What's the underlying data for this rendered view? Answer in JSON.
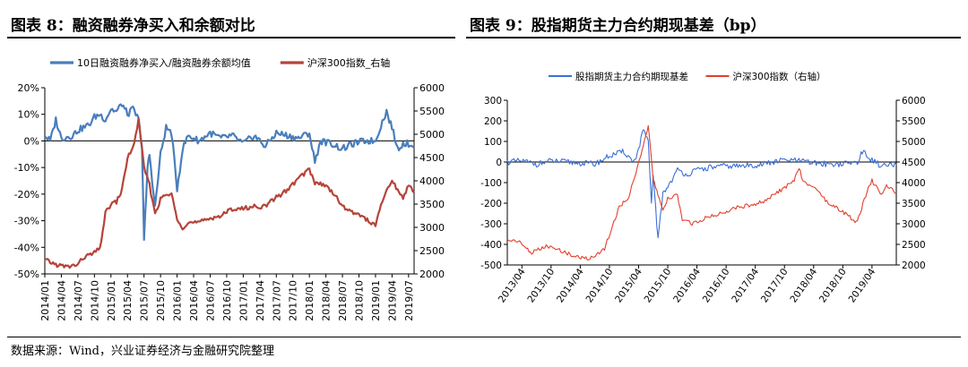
{
  "figures": {
    "left_title": "图表 8：融资融券净买入和余额对比",
    "right_title": "图表 9：股指期货主力合约期现基差（bp）"
  },
  "source_note": "数据来源：Wind，兴业证券经济与金融研究院整理",
  "chart_data": [
    {
      "type": "line",
      "title": "图表 8：融资融券净买入和余额对比",
      "x_ticks": [
        "2014/01",
        "2014/04",
        "2014/07",
        "2014/10",
        "2015/01",
        "2015/04",
        "2015/07",
        "2015/10",
        "2016/01",
        "2016/04",
        "2016/07",
        "2016/10",
        "2017/01",
        "2017/04",
        "2017/07",
        "2017/10",
        "2018/01",
        "2018/04",
        "2018/07",
        "2018/10",
        "2019/01",
        "2019/04",
        "2019/07"
      ],
      "x_range": [
        "2014/01",
        "2019/08"
      ],
      "y_left": {
        "ticks": [
          "20%",
          "10%",
          "0%",
          "-10%",
          "-20%",
          "-30%",
          "-40%",
          "-50%"
        ],
        "range": [
          -50,
          20
        ]
      },
      "y_right": {
        "ticks": [
          "6000",
          "5500",
          "5000",
          "4500",
          "4000",
          "3500",
          "3000",
          "2500",
          "2000"
        ],
        "range": [
          2000,
          6000
        ]
      },
      "legend": "top",
      "series": [
        {
          "name": "10日融资融券净买入/融资融券余额均值",
          "axis": "left",
          "color": "#4a7ebb",
          "points": [
            [
              "2014/01",
              2
            ],
            [
              "2014/02",
              0
            ],
            [
              "2014/03",
              8
            ],
            [
              "2014/04",
              1
            ],
            [
              "2014/06",
              2
            ],
            [
              "2014/07",
              4
            ],
            [
              "2014/09",
              6
            ],
            [
              "2014/10",
              9
            ],
            [
              "2014/11",
              10
            ],
            [
              "2014/12",
              8
            ],
            [
              "2015/01",
              12
            ],
            [
              "2015/02",
              11
            ],
            [
              "2015/03",
              14
            ],
            [
              "2015/04",
              10
            ],
            [
              "2015/05",
              12
            ],
            [
              "2015/06",
              8
            ],
            [
              "2015/06/20",
              -2
            ],
            [
              "2015/07",
              -38
            ],
            [
              "2015/07/20",
              -10
            ],
            [
              "2015/08",
              -5
            ],
            [
              "2015/09",
              -25
            ],
            [
              "2015/10",
              -5
            ],
            [
              "2015/11",
              5
            ],
            [
              "2015/12",
              3
            ],
            [
              "2016/01",
              -18
            ],
            [
              "2016/02",
              -3
            ],
            [
              "2016/03",
              2
            ],
            [
              "2016/05",
              0
            ],
            [
              "2016/07",
              3
            ],
            [
              "2016/09",
              1
            ],
            [
              "2016/11",
              2
            ],
            [
              "2017/01",
              -1
            ],
            [
              "2017/03",
              2
            ],
            [
              "2017/05",
              -2
            ],
            [
              "2017/07",
              3
            ],
            [
              "2017/09",
              2
            ],
            [
              "2017/11",
              1
            ],
            [
              "2018/01",
              3
            ],
            [
              "2018/02",
              -8
            ],
            [
              "2018/03",
              0
            ],
            [
              "2018/05",
              -1
            ],
            [
              "2018/07",
              -3
            ],
            [
              "2018/09",
              -1
            ],
            [
              "2018/11",
              0
            ],
            [
              "2019/01",
              0
            ],
            [
              "2019/02",
              6
            ],
            [
              "2019/03",
              11
            ],
            [
              "2019/04",
              5
            ],
            [
              "2019/05",
              -3
            ],
            [
              "2019/06",
              -1
            ],
            [
              "2019/07",
              -1
            ],
            [
              "2019/08",
              -2
            ]
          ]
        },
        {
          "name": "沪深300指数_右轴",
          "axis": "right",
          "color": "#b5443a",
          "points": [
            [
              "2014/01",
              2300
            ],
            [
              "2014/03",
              2200
            ],
            [
              "2014/05",
              2150
            ],
            [
              "2014/07",
              2200
            ],
            [
              "2014/08",
              2350
            ],
            [
              "2014/10",
              2450
            ],
            [
              "2014/11",
              2550
            ],
            [
              "2014/12",
              3300
            ],
            [
              "2015/01",
              3500
            ],
            [
              "2015/02",
              3550
            ],
            [
              "2015/03",
              3800
            ],
            [
              "2015/04",
              4500
            ],
            [
              "2015/05",
              4700
            ],
            [
              "2015/06",
              5300
            ],
            [
              "2015/07",
              4300
            ],
            [
              "2015/08",
              3900
            ],
            [
              "2015/09",
              3300
            ],
            [
              "2015/10",
              3600
            ],
            [
              "2015/11",
              3700
            ],
            [
              "2015/12",
              3700
            ],
            [
              "2016/01",
              3200
            ],
            [
              "2016/02",
              3000
            ],
            [
              "2016/03",
              3100
            ],
            [
              "2016/05",
              3100
            ],
            [
              "2016/07",
              3200
            ],
            [
              "2016/09",
              3250
            ],
            [
              "2016/11",
              3400
            ],
            [
              "2017/01",
              3400
            ],
            [
              "2017/03",
              3450
            ],
            [
              "2017/05",
              3450
            ],
            [
              "2017/07",
              3650
            ],
            [
              "2017/09",
              3800
            ],
            [
              "2017/11",
              4050
            ],
            [
              "2018/01",
              4250
            ],
            [
              "2018/02",
              3950
            ],
            [
              "2018/03",
              3950
            ],
            [
              "2018/05",
              3800
            ],
            [
              "2018/07",
              3450
            ],
            [
              "2018/09",
              3300
            ],
            [
              "2018/10",
              3300
            ],
            [
              "2018/12",
              3100
            ],
            [
              "2019/01",
              3050
            ],
            [
              "2019/02",
              3450
            ],
            [
              "2019/03",
              3800
            ],
            [
              "2019/04",
              4000
            ],
            [
              "2019/05",
              3800
            ],
            [
              "2019/06",
              3650
            ],
            [
              "2019/07",
              3900
            ],
            [
              "2019/08",
              3750
            ]
          ]
        }
      ]
    },
    {
      "type": "line",
      "title": "图表 9：股指期货主力合约期现基差（bp）",
      "x_ticks": [
        "2013/04",
        "2013/10",
        "2014/04",
        "2014/10",
        "2015/04",
        "2015/10",
        "2016/04",
        "2016/10",
        "2017/04",
        "2017/10",
        "2018/04",
        "2018/10",
        "2019/04"
      ],
      "x_range": [
        "2013/01",
        "2019/09"
      ],
      "y_left": {
        "ticks": [
          "300",
          "200",
          "100",
          "0",
          "-100",
          "-200",
          "-300",
          "-400",
          "-500"
        ],
        "range": [
          -500,
          300
        ]
      },
      "y_right": {
        "ticks": [
          "6000",
          "5500",
          "5000",
          "4500",
          "4000",
          "3500",
          "3000",
          "2500",
          "2000"
        ],
        "range": [
          2000,
          6000
        ]
      },
      "legend": "top",
      "series": [
        {
          "name": "股指期货主力合约期现基差",
          "axis": "left",
          "color": "#3b6fd6",
          "points": [
            [
              "2013/01",
              0
            ],
            [
              "2013/04",
              5
            ],
            [
              "2013/07",
              -10
            ],
            [
              "2013/10",
              5
            ],
            [
              "2014/01",
              0
            ],
            [
              "2014/04",
              -5
            ],
            [
              "2014/07",
              -10
            ],
            [
              "2014/10",
              30
            ],
            [
              "2015/01",
              50
            ],
            [
              "2015/03",
              0
            ],
            [
              "2015/04",
              60
            ],
            [
              "2015/05",
              160
            ],
            [
              "2015/06",
              90
            ],
            [
              "2015/06/20",
              -200
            ],
            [
              "2015/07",
              -60
            ],
            [
              "2015/08",
              -380
            ],
            [
              "2015/09",
              -150
            ],
            [
              "2015/10",
              -120
            ],
            [
              "2015/12",
              -40
            ],
            [
              "2016/02",
              -60
            ],
            [
              "2016/04",
              -40
            ],
            [
              "2016/07",
              -25
            ],
            [
              "2016/10",
              -20
            ],
            [
              "2017/01",
              -20
            ],
            [
              "2017/04",
              -15
            ],
            [
              "2017/07",
              -5
            ],
            [
              "2017/10",
              10
            ],
            [
              "2018/01",
              5
            ],
            [
              "2018/04",
              -5
            ],
            [
              "2018/07",
              -10
            ],
            [
              "2018/10",
              -10
            ],
            [
              "2019/01",
              0
            ],
            [
              "2019/02",
              50
            ],
            [
              "2019/04",
              10
            ],
            [
              "2019/06",
              -20
            ],
            [
              "2019/09",
              -15
            ]
          ]
        },
        {
          "name": "沪深300指数（右轴）",
          "axis": "right",
          "color": "#e2402e",
          "points": [
            [
              "2013/01",
              2600
            ],
            [
              "2013/03",
              2600
            ],
            [
              "2013/06",
              2300
            ],
            [
              "2013/09",
              2450
            ],
            [
              "2013/12",
              2350
            ],
            [
              "2014/03",
              2200
            ],
            [
              "2014/06",
              2150
            ],
            [
              "2014/09",
              2400
            ],
            [
              "2014/12",
              3400
            ],
            [
              "2015/02",
              3650
            ],
            [
              "2015/04",
              4500
            ],
            [
              "2015/05",
              4900
            ],
            [
              "2015/06",
              5350
            ],
            [
              "2015/07",
              4100
            ],
            [
              "2015/08",
              3700
            ],
            [
              "2015/09",
              3300
            ],
            [
              "2015/10",
              3600
            ],
            [
              "2015/12",
              3700
            ],
            [
              "2016/01",
              3100
            ],
            [
              "2016/03",
              3000
            ],
            [
              "2016/06",
              3150
            ],
            [
              "2016/09",
              3250
            ],
            [
              "2016/12",
              3400
            ],
            [
              "2017/03",
              3450
            ],
            [
              "2017/06",
              3550
            ],
            [
              "2017/09",
              3800
            ],
            [
              "2017/12",
              4050
            ],
            [
              "2018/01",
              4350
            ],
            [
              "2018/02",
              4000
            ],
            [
              "2018/05",
              3800
            ],
            [
              "2018/07",
              3500
            ],
            [
              "2018/10",
              3300
            ],
            [
              "2018/12",
              3100
            ],
            [
              "2019/01",
              3050
            ],
            [
              "2019/03",
              3800
            ],
            [
              "2019/04",
              4050
            ],
            [
              "2019/06",
              3700
            ],
            [
              "2019/07",
              3950
            ],
            [
              "2019/09",
              3750
            ]
          ]
        }
      ]
    }
  ]
}
